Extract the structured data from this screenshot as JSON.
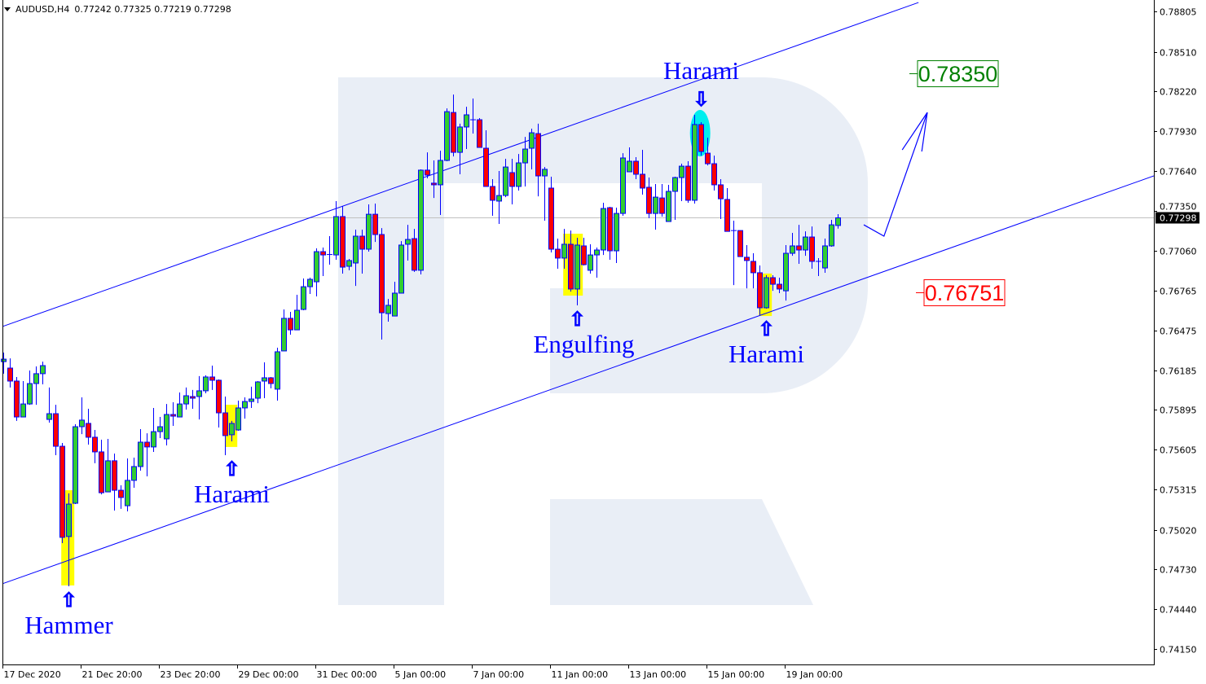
{
  "header": {
    "symbol": "AUDUSD,H4",
    "ohlc": "0.77242 0.77325 0.77219 0.77298",
    "menu_icon": "triangle-down-icon"
  },
  "chart_data": {
    "type": "candlestick",
    "symbol": "AUDUSD",
    "timeframe": "H4",
    "candle_format": [
      "open",
      "high",
      "low",
      "close"
    ],
    "colors": {
      "bull": "#32cd32",
      "bear": "#ff0000",
      "outline": "#0000ff",
      "trendline": "#0000ff",
      "highlight": "#ffff00",
      "highlight_top": "#00eeee",
      "watermark": "#e9eef6",
      "target_up": "#008000",
      "target_down": "#ff0000",
      "current_price_line": "#c0c0c0"
    },
    "yticks": [
      "0.78805",
      "0.78510",
      "0.78220",
      "0.77930",
      "0.77640",
      "0.77350",
      "0.77060",
      "0.76765",
      "0.76475",
      "0.76185",
      "0.75895",
      "0.75605",
      "0.75315",
      "0.75020",
      "0.74730",
      "0.74440",
      "0.74150"
    ],
    "ylim": [
      0.7415,
      0.78805
    ],
    "xticks": [
      {
        "candle": 0,
        "label": "17 Dec 2020"
      },
      {
        "candle": 12,
        "label": "21 Dec 20:00"
      },
      {
        "candle": 24,
        "label": "23 Dec 20:00"
      },
      {
        "candle": 36,
        "label": "29 Dec 00:00"
      },
      {
        "candle": 48,
        "label": "31 Dec 00:00"
      },
      {
        "candle": 60,
        "label": "5 Jan 00:00"
      },
      {
        "candle": 72,
        "label": "7 Jan 00:00"
      },
      {
        "candle": 84,
        "label": "11 Jan 00:00"
      },
      {
        "candle": 96,
        "label": "13 Jan 00:00"
      },
      {
        "candle": 108,
        "label": "15 Jan 00:00"
      },
      {
        "candle": 120,
        "label": "19 Jan 00:00"
      }
    ],
    "current_price": "0.77298",
    "candles": [
      [
        0.76248,
        0.76314,
        0.7616,
        0.76266
      ],
      [
        0.76201,
        0.76272,
        0.76059,
        0.76106
      ],
      [
        0.76106,
        0.76136,
        0.75815,
        0.75844
      ],
      [
        0.75844,
        0.76106,
        0.75844,
        0.75939
      ],
      [
        0.75939,
        0.76183,
        0.75933,
        0.76088
      ],
      [
        0.76088,
        0.76213,
        0.75933,
        0.7616
      ],
      [
        0.7616,
        0.76248,
        0.76082,
        0.76219
      ],
      [
        0.75826,
        0.76059,
        0.75803,
        0.75868
      ],
      [
        0.75868,
        0.75933,
        0.75565,
        0.7563
      ],
      [
        0.7563,
        0.75654,
        0.74923,
        0.74965
      ],
      [
        0.74971,
        0.75286,
        0.74608,
        0.75208
      ],
      [
        0.75214,
        0.75791,
        0.75208,
        0.75773
      ],
      [
        0.75773,
        0.75987,
        0.75719,
        0.75821
      ],
      [
        0.75797,
        0.75904,
        0.75642,
        0.75696
      ],
      [
        0.75696,
        0.75749,
        0.75506,
        0.75589
      ],
      [
        0.75589,
        0.75678,
        0.75279,
        0.75291
      ],
      [
        0.75297,
        0.75684,
        0.75297,
        0.75524
      ],
      [
        0.75524,
        0.75577,
        0.75161,
        0.75309
      ],
      [
        0.75309,
        0.75345,
        0.75173,
        0.75256
      ],
      [
        0.75196,
        0.75541,
        0.75155,
        0.75381
      ],
      [
        0.75381,
        0.75547,
        0.75327,
        0.75482
      ],
      [
        0.75482,
        0.75755,
        0.75452,
        0.7566
      ],
      [
        0.7566,
        0.75725,
        0.7541,
        0.75625
      ],
      [
        0.75625,
        0.7591,
        0.75589,
        0.75737
      ],
      [
        0.75737,
        0.75844,
        0.7569,
        0.75773
      ],
      [
        0.75684,
        0.75939,
        0.75636,
        0.75862
      ],
      [
        0.75862,
        0.75951,
        0.75779,
        0.7585
      ],
      [
        0.75844,
        0.76023,
        0.75844,
        0.75939
      ],
      [
        0.75939,
        0.76059,
        0.75898,
        0.75999
      ],
      [
        0.75993,
        0.76041,
        0.75904,
        0.75981
      ],
      [
        0.75993,
        0.76142,
        0.75826,
        0.76035
      ],
      [
        0.76035,
        0.76148,
        0.76017,
        0.76136
      ],
      [
        0.76136,
        0.76219,
        0.76041,
        0.76112
      ],
      [
        0.76112,
        0.76118,
        0.75767,
        0.75874
      ],
      [
        0.75874,
        0.75993,
        0.75565,
        0.75708
      ],
      [
        0.75714,
        0.75815,
        0.75666,
        0.75797
      ],
      [
        0.75749,
        0.75963,
        0.75743,
        0.7591
      ],
      [
        0.7591,
        0.75987,
        0.75832,
        0.75957
      ],
      [
        0.75957,
        0.76065,
        0.7591,
        0.75975
      ],
      [
        0.75981,
        0.76106,
        0.75945,
        0.761
      ],
      [
        0.76106,
        0.76243,
        0.75981,
        0.7613
      ],
      [
        0.7613,
        0.76136,
        0.76053,
        0.76088
      ],
      [
        0.76047,
        0.7635,
        0.75963,
        0.7632
      ],
      [
        0.76326,
        0.76629,
        0.76326,
        0.76564
      ],
      [
        0.76564,
        0.76611,
        0.76445,
        0.7648
      ],
      [
        0.7648,
        0.76736,
        0.7648,
        0.76623
      ],
      [
        0.76629,
        0.76855,
        0.76623,
        0.76795
      ],
      [
        0.76795,
        0.76861,
        0.76742,
        0.76849
      ],
      [
        0.76831,
        0.77075,
        0.76724,
        0.77051
      ],
      [
        0.77051,
        0.77081,
        0.76873,
        0.77027
      ],
      [
        0.77027,
        0.77164,
        0.76956,
        0.7703
      ],
      [
        0.77027,
        0.7742,
        0.76992,
        0.77307
      ],
      [
        0.77307,
        0.77384,
        0.76891,
        0.76938
      ],
      [
        0.76944,
        0.76998,
        0.76915,
        0.76986
      ],
      [
        0.76968,
        0.77212,
        0.76801,
        0.77164
      ],
      [
        0.77164,
        0.77212,
        0.76891,
        0.77069
      ],
      [
        0.77069,
        0.77396,
        0.77051,
        0.77324
      ],
      [
        0.77324,
        0.77402,
        0.77122,
        0.77176
      ],
      [
        0.77176,
        0.77223,
        0.76409,
        0.76605
      ],
      [
        0.76599,
        0.76706,
        0.7654,
        0.76659
      ],
      [
        0.76581,
        0.76831,
        0.76581,
        0.76748
      ],
      [
        0.76748,
        0.77128,
        0.76748,
        0.77099
      ],
      [
        0.77105,
        0.77247,
        0.76986,
        0.7714
      ],
      [
        0.77146,
        0.77217,
        0.76903,
        0.76915
      ],
      [
        0.76915,
        0.77652,
        0.76885,
        0.77646
      ],
      [
        0.77646,
        0.77776,
        0.77586,
        0.7761
      ],
      [
        0.77551,
        0.77717,
        0.77443,
        0.77539
      ],
      [
        0.77539,
        0.77788,
        0.77319,
        0.77717
      ],
      [
        0.77717,
        0.78097,
        0.77711,
        0.78073
      ],
      [
        0.78067,
        0.78198,
        0.77746,
        0.77776
      ],
      [
        0.77776,
        0.77985,
        0.77616,
        0.77961
      ],
      [
        0.77961,
        0.78109,
        0.778,
        0.7805
      ],
      [
        0.78014,
        0.78169,
        0.77913,
        0.78014
      ],
      [
        0.78014,
        0.78026,
        0.77812,
        0.77812
      ],
      [
        0.77806,
        0.77937,
        0.77527,
        0.77527
      ],
      [
        0.77527,
        0.7758,
        0.77313,
        0.77426
      ],
      [
        0.7742,
        0.7764,
        0.77253,
        0.77461
      ],
      [
        0.77461,
        0.77729,
        0.77449,
        0.77669
      ],
      [
        0.77628,
        0.77729,
        0.77396,
        0.77527
      ],
      [
        0.77527,
        0.77764,
        0.77497,
        0.77699
      ],
      [
        0.77699,
        0.77889,
        0.77527,
        0.778
      ],
      [
        0.77806,
        0.77949,
        0.77652,
        0.77919
      ],
      [
        0.77913,
        0.77985,
        0.77455,
        0.77604
      ],
      [
        0.77604,
        0.77669,
        0.77277,
        0.77652
      ],
      [
        0.77515,
        0.77598,
        0.77045,
        0.77069
      ],
      [
        0.77069,
        0.77146,
        0.76926,
        0.77004
      ],
      [
        0.77004,
        0.77217,
        0.76926,
        0.77105
      ],
      [
        0.77105,
        0.77205,
        0.76759,
        0.76778
      ],
      [
        0.76778,
        0.77152,
        0.76659,
        0.77099
      ],
      [
        0.77093,
        0.77152,
        0.7695,
        0.76956
      ],
      [
        0.76915,
        0.77105,
        0.76891,
        0.77027
      ],
      [
        0.77027,
        0.77081,
        0.76861,
        0.77063
      ],
      [
        0.77063,
        0.77408,
        0.77027,
        0.77366
      ],
      [
        0.77372,
        0.77378,
        0.76992,
        0.77057
      ],
      [
        0.77057,
        0.77372,
        0.76968,
        0.7733
      ],
      [
        0.7733,
        0.7777,
        0.77313,
        0.77735
      ],
      [
        0.77634,
        0.77812,
        0.77634,
        0.77711
      ],
      [
        0.77711,
        0.77741,
        0.7758,
        0.77616
      ],
      [
        0.77616,
        0.77794,
        0.77467,
        0.77515
      ],
      [
        0.77521,
        0.77592,
        0.77295,
        0.7733
      ],
      [
        0.7733,
        0.77545,
        0.77212,
        0.77449
      ],
      [
        0.77443,
        0.77545,
        0.77307,
        0.7733
      ],
      [
        0.77271,
        0.77539,
        0.77271,
        0.77491
      ],
      [
        0.77491,
        0.77598,
        0.77283,
        0.77592
      ],
      [
        0.77592,
        0.77693,
        0.7742,
        0.77675
      ],
      [
        0.77675,
        0.77711,
        0.77408,
        0.77426
      ],
      [
        0.77426,
        0.7805,
        0.77402,
        0.77979
      ],
      [
        0.77979,
        0.77996,
        0.77752,
        0.77782
      ],
      [
        0.7777,
        0.77883,
        0.77681,
        0.77693
      ],
      [
        0.77693,
        0.77752,
        0.77497,
        0.77539
      ],
      [
        0.77539,
        0.7758,
        0.77289,
        0.77437
      ],
      [
        0.77432,
        0.77515,
        0.77199,
        0.77199
      ],
      [
        0.77205,
        0.77277,
        0.76807,
        0.77205
      ],
      [
        0.77205,
        0.77205,
        0.77015,
        0.77015
      ],
      [
        0.7701,
        0.77099,
        0.76783,
        0.76986
      ],
      [
        0.7698,
        0.77039,
        0.76783,
        0.76897
      ],
      [
        0.76897,
        0.7695,
        0.76587,
        0.76641
      ],
      [
        0.76641,
        0.76879,
        0.76635,
        0.76861
      ],
      [
        0.76861,
        0.76879,
        0.76765,
        0.76813
      ],
      [
        0.76813,
        0.76861,
        0.76748,
        0.76778
      ],
      [
        0.76765,
        0.77099,
        0.76694,
        0.77039
      ],
      [
        0.77039,
        0.77188,
        0.77021,
        0.77093
      ],
      [
        0.77093,
        0.77247,
        0.76962,
        0.77063
      ],
      [
        0.77063,
        0.77199,
        0.77021,
        0.77158
      ],
      [
        0.77158,
        0.77235,
        0.76926,
        0.7698
      ],
      [
        0.7698,
        0.77004,
        0.76873,
        0.76974
      ],
      [
        0.76932,
        0.77146,
        0.76897,
        0.77093
      ],
      [
        0.77093,
        0.77283,
        0.77087,
        0.77247
      ],
      [
        0.77242,
        0.77325,
        0.77219,
        0.77298
      ]
    ],
    "trendlines": [
      {
        "name": "channel-upper",
        "from": [
          -0.5,
          0.76498
        ],
        "to": [
          140.4,
          0.7887
        ]
      },
      {
        "name": "channel-lower",
        "from": [
          -0.5,
          0.7462
        ],
        "to": [
          176.5,
          0.77604
        ]
      }
    ],
    "forecast_path": {
      "points": [
        [
          132,
          0.77247
        ],
        [
          135.1,
          0.77164
        ],
        [
          141.75,
          0.78067
        ]
      ],
      "arrowhead": [
        [
          137.9,
          0.77794
        ],
        [
          140.9,
          0.77782
        ]
      ]
    },
    "highlights": [
      {
        "pattern": "hammer",
        "candles": [
          8.9,
          10.9
        ],
        "price": [
          0.74614,
          0.75309
        ],
        "shape": "rect",
        "color": "#ffff00"
      },
      {
        "pattern": "harami",
        "candles": [
          34.0,
          35.9
        ],
        "price": [
          0.75625,
          0.75933
        ],
        "shape": "rect",
        "color": "#ffff00"
      },
      {
        "pattern": "engulfing",
        "candles": [
          85.9,
          88.9
        ],
        "price": [
          0.7673,
          0.77182
        ],
        "shape": "rect",
        "color": "#ffff00"
      },
      {
        "pattern": "harami",
        "candles": [
          115.9,
          117.9
        ],
        "price": [
          0.76581,
          0.76891
        ],
        "shape": "rect",
        "color": "#ffff00"
      },
      {
        "pattern": "harami-top",
        "center": [
          106.9,
          0.77916
        ],
        "radius": [
          1.56,
          0.0017
        ],
        "shape": "ellipse",
        "color": "#00eeee"
      }
    ],
    "annotations": [
      {
        "text": "Hammer",
        "candle": 10,
        "side": "below",
        "icon": "outline-up-arrow-icon"
      },
      {
        "text": "Harami",
        "candle": 35,
        "side": "below",
        "icon": "outline-up-arrow-icon"
      },
      {
        "text": "Engulfing",
        "candle": 88,
        "side": "below",
        "icon": "outline-up-arrow-icon"
      },
      {
        "text": "Harami",
        "candle": 117,
        "side": "below",
        "icon": "outline-up-arrow-icon"
      },
      {
        "text": "Harami",
        "candle": 107,
        "side": "above",
        "icon": "outline-down-arrow-icon"
      }
    ],
    "targets": [
      {
        "label": "0.78350",
        "price": 0.7835,
        "color": "#008000"
      },
      {
        "label": "0.76751",
        "price": 0.76751,
        "color": "#ff0000"
      }
    ]
  }
}
